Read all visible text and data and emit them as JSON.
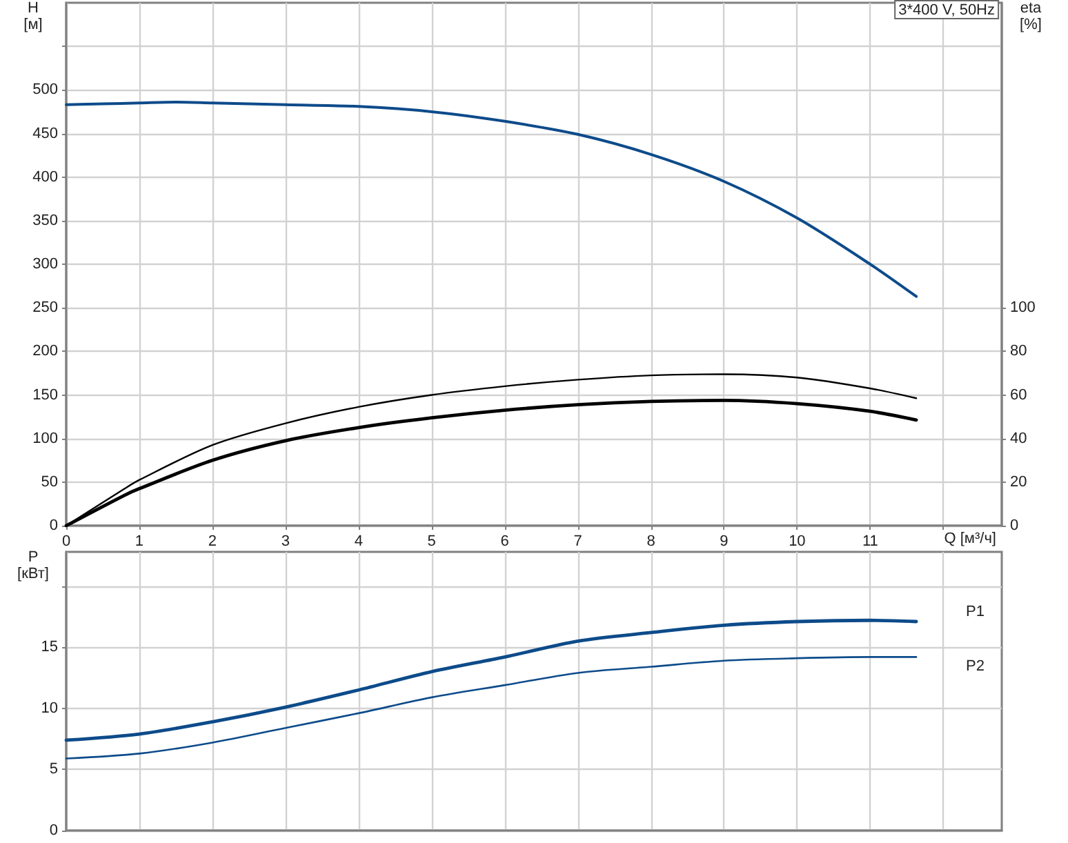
{
  "chart_data": [
    {
      "type": "line",
      "title": "3*400 V, 50Hz",
      "xlabel": "Q [м³/ч]",
      "ylabel": "H [м]",
      "y2label": "eta [%]",
      "xlim": [
        0,
        12.8
      ],
      "xticks": [
        0,
        1,
        2,
        3,
        4,
        5,
        6,
        7,
        8,
        9,
        10,
        11,
        {
          "value": 12,
          "label": null
        }
      ],
      "ylim": [
        0,
        600
      ],
      "yticks": [
        0,
        50,
        100,
        150,
        200,
        250,
        300,
        350,
        400,
        450,
        500,
        {
          "value": 550,
          "label": null
        }
      ],
      "y2lim": [
        0,
        240
      ],
      "y2ticks": [
        0,
        20,
        40,
        60,
        80,
        100
      ],
      "grid": true,
      "marker": "none",
      "line_style": "solid",
      "series": [
        {
          "color": "#0d4b8a",
          "x": [
            0,
            0.5,
            1,
            1.5,
            2,
            3,
            4,
            5,
            6,
            7,
            8,
            9,
            10,
            11,
            11.63
          ],
          "values": [
            483,
            484,
            485,
            486,
            485,
            483,
            481,
            475,
            464,
            449,
            426,
            395,
            353,
            300,
            263
          ]
        },
        {
          "color": "#000000",
          "axis": "y2",
          "x": [
            0,
            0.8,
            1,
            2,
            3,
            4,
            5,
            6,
            7,
            8,
            9,
            10,
            11,
            11.63
          ],
          "values": [
            0,
            17,
            21,
            37,
            47,
            54.5,
            60,
            64,
            67,
            69,
            69.5,
            68,
            63,
            58.5
          ]
        },
        {
          "color": "#000000",
          "axis": "y2",
          "x": [
            0,
            0.8,
            1,
            2,
            3,
            4,
            5,
            6,
            7,
            8,
            9,
            10,
            11,
            11.63
          ],
          "values": [
            0,
            14,
            17,
            30,
            39,
            45,
            49.5,
            53,
            55.5,
            57,
            57.5,
            56,
            52.5,
            48.5
          ]
        }
      ]
    },
    {
      "type": "line",
      "ylabel": "P [кВт]",
      "xlim": [
        0,
        12.8
      ],
      "xticks": [
        0,
        1,
        2,
        3,
        4,
        5,
        6,
        7,
        8,
        9,
        10,
        11,
        {
          "value": 12,
          "label": null
        }
      ],
      "ylim": [
        0,
        22.8
      ],
      "yticks": [
        0,
        5,
        10,
        15,
        {
          "value": 20,
          "label": null
        }
      ],
      "tick_labels": "y",
      "grid": true,
      "marker": "none",
      "line_style": "solid",
      "series": [
        {
          "name": "P1",
          "color": "#0d4b8a",
          "x": [
            0,
            1,
            2,
            3,
            4,
            5,
            6,
            7,
            8,
            9,
            10,
            11,
            11.63
          ],
          "values": [
            7.4,
            7.9,
            8.9,
            10.1,
            11.5,
            13,
            14.2,
            15.5,
            16.2,
            16.8,
            17.1,
            17.2,
            17.1
          ]
        },
        {
          "name": "P2",
          "color": "#0d4b8a",
          "x": [
            0,
            1,
            2,
            3,
            4,
            5,
            6,
            7,
            8,
            9,
            10,
            11,
            11.63
          ],
          "values": [
            5.9,
            6.3,
            7.2,
            8.4,
            9.6,
            10.9,
            11.9,
            12.9,
            13.4,
            13.9,
            14.1,
            14.2,
            14.2
          ]
        }
      ]
    }
  ]
}
